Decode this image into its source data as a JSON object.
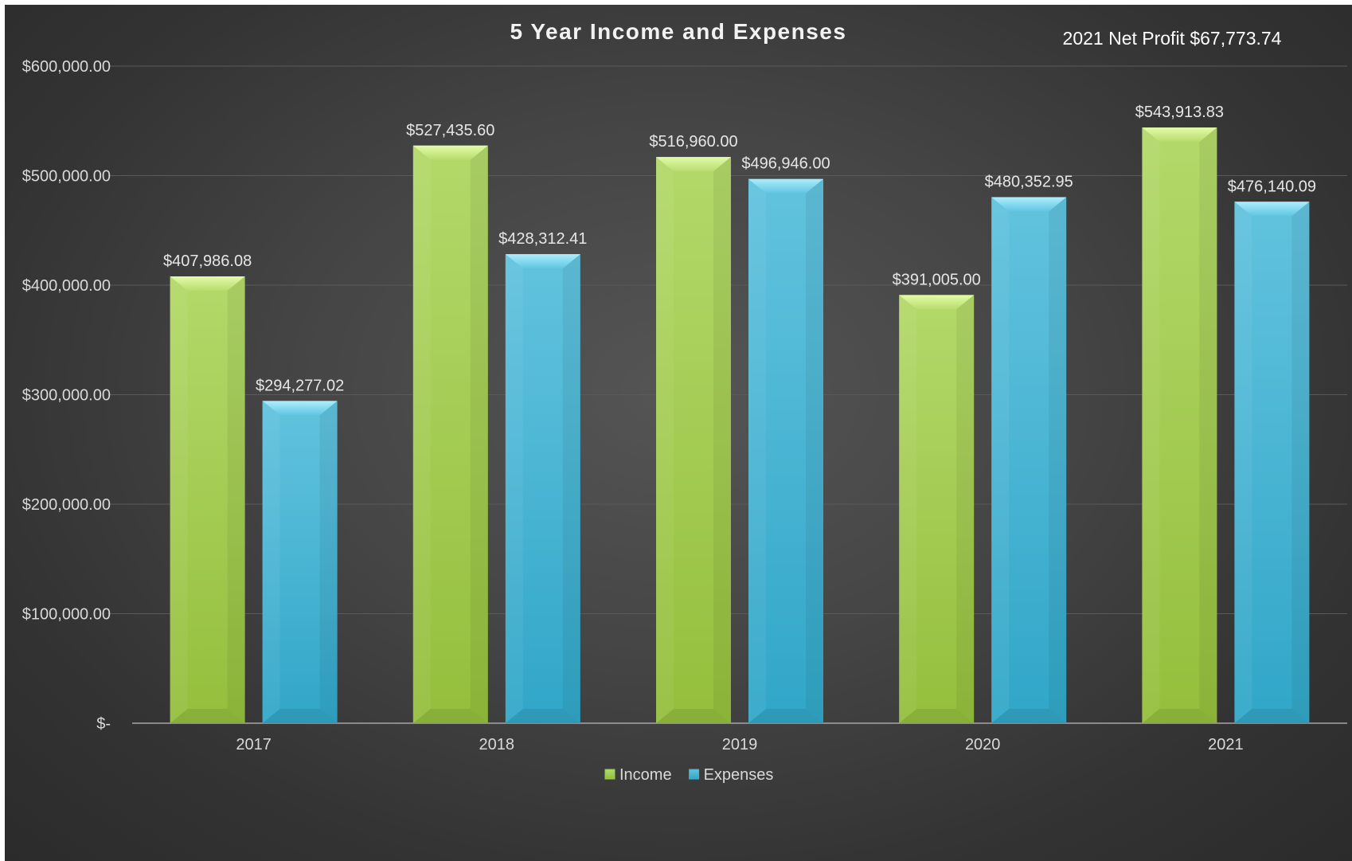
{
  "chart_data": {
    "type": "bar",
    "title": "5 Year Income and Expenses",
    "annotation": "2021 Net Profit $67,773.74",
    "categories": [
      "2017",
      "2018",
      "2019",
      "2020",
      "2021"
    ],
    "series": [
      {
        "name": "Income",
        "color": "#9ccc44",
        "values": [
          407986.08,
          527435.6,
          516960.0,
          391005.0,
          543913.83
        ],
        "labels": [
          "$407,986.08",
          "$527,435.60",
          "$516,960.00",
          "$391,005.00",
          "$543,913.83"
        ]
      },
      {
        "name": "Expenses",
        "color": "#3fb4d6",
        "values": [
          294277.02,
          428312.41,
          496946.0,
          480352.95,
          476140.09
        ],
        "labels": [
          "$294,277.02",
          "$428,312.41",
          "$496,946.00",
          "$480,352.95",
          "$476,140.09"
        ]
      }
    ],
    "ylim": [
      0,
      600000
    ],
    "yticks": [
      0,
      100000,
      200000,
      300000,
      400000,
      500000,
      600000
    ],
    "ytick_labels": [
      "$-",
      "$100,000.00",
      "$200,000.00",
      "$300,000.00",
      "$400,000.00",
      "$500,000.00",
      "$600,000.00"
    ],
    "grid": true,
    "legend_position": "bottom"
  }
}
